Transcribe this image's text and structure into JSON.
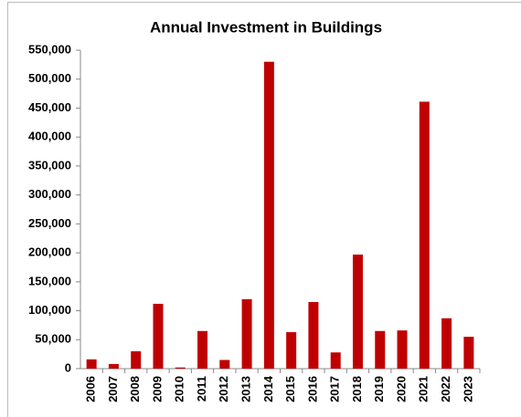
{
  "chart_data": {
    "type": "bar",
    "title": "Annual Investment in Buildings",
    "categories": [
      "2006",
      "2007",
      "2008",
      "2009",
      "2010",
      "2011",
      "2012",
      "2013",
      "2014",
      "2015",
      "2016",
      "2017",
      "2018",
      "2019",
      "2020",
      "2021",
      "2022",
      "2023"
    ],
    "values": [
      16000,
      8000,
      30000,
      112000,
      2000,
      65000,
      15000,
      120000,
      530000,
      63000,
      115000,
      28000,
      197000,
      65000,
      66000,
      461000,
      87000,
      55000
    ],
    "color": "#c00000",
    "ylim": [
      0,
      550000
    ],
    "yticks": [
      0,
      {
        "value": 50000,
        "label": "50,000"
      },
      {
        "value": 100000,
        "label": "100,000"
      },
      {
        "value": 150000,
        "label": "150,000"
      },
      {
        "value": 200000,
        "label": "200,000"
      },
      {
        "value": 250000,
        "label": "250,000"
      },
      {
        "value": 300000,
        "label": "300,000"
      },
      {
        "value": 350000,
        "label": "350,000"
      },
      {
        "value": 400000,
        "label": "400,000"
      },
      {
        "value": 450000,
        "label": "450,000"
      },
      {
        "value": 500000,
        "label": "500,000"
      },
      {
        "value": 550000,
        "label": "550,000"
      }
    ],
    "grid": false
  }
}
